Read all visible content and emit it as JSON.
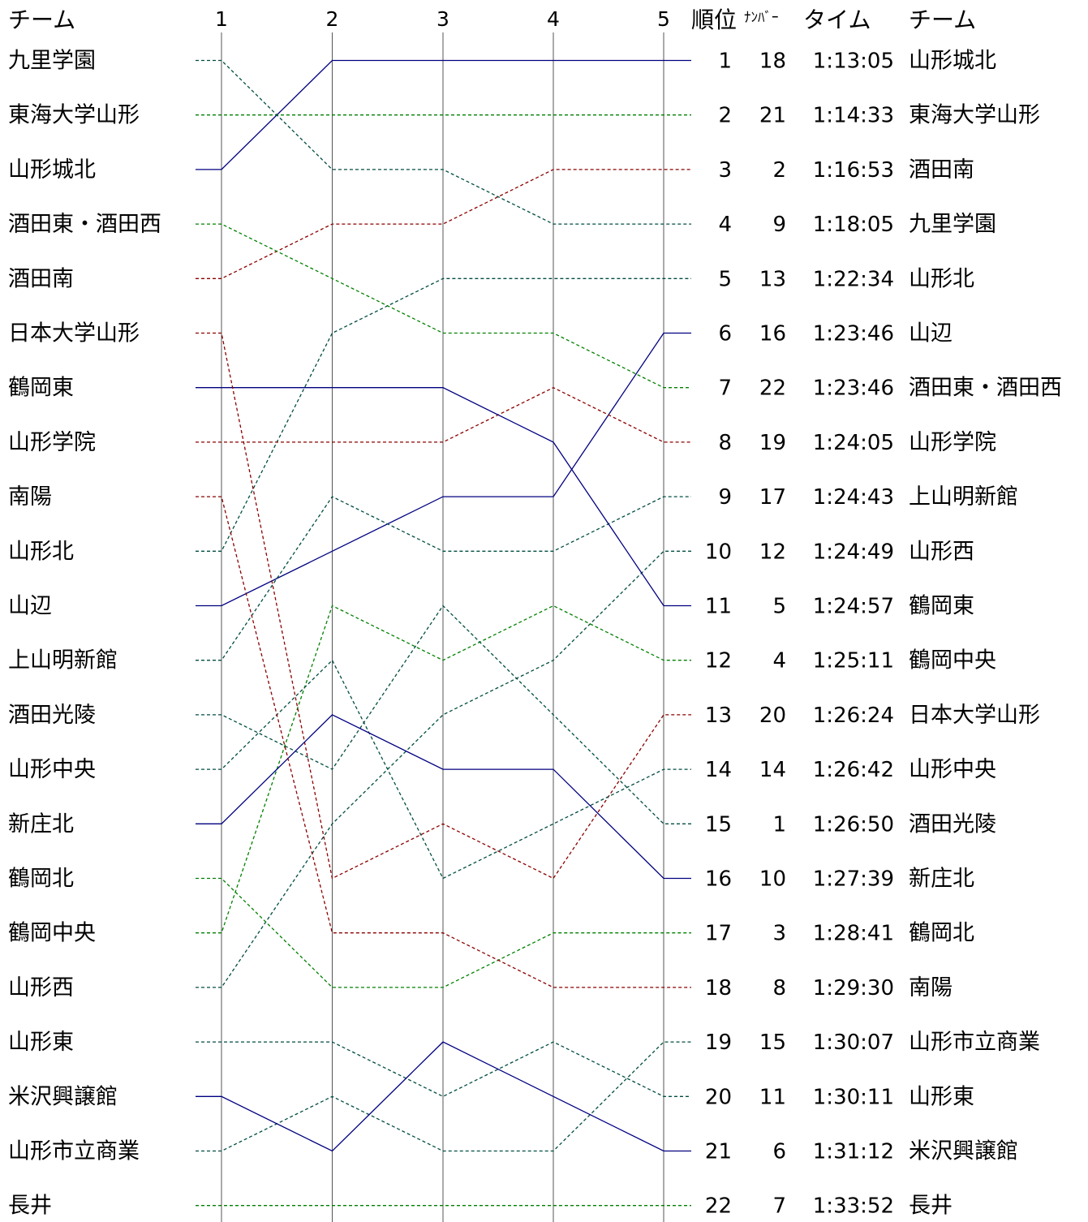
{
  "chart_data": {
    "type": "line",
    "title": "",
    "headers": {
      "left_team": "チーム",
      "rank": "順位",
      "number": "ﾅﾝﾊﾞｰ",
      "time": "タイム",
      "right_team": "チーム"
    },
    "x": [
      "1",
      "2",
      "3",
      "4",
      "5"
    ],
    "ylim": [
      1,
      22
    ],
    "y_inverted": true,
    "start_order": [
      "九里学園",
      "東海大学山形",
      "山形城北",
      "酒田東・酒田西",
      "酒田南",
      "日本大学山形",
      "鶴岡東",
      "山形学院",
      "南陽",
      "山形北",
      "山辺",
      "上山明新館",
      "酒田光陵",
      "山形中央",
      "新庄北",
      "鶴岡北",
      "鶴岡中央",
      "山形西",
      "山形東",
      "米沢興譲館",
      "山形市立商業",
      "長井"
    ],
    "series": [
      {
        "name": "山形城北",
        "values": [
          3,
          1,
          1,
          1,
          1
        ],
        "color": "#000080",
        "dash": false
      },
      {
        "name": "東海大学山形",
        "values": [
          2,
          2,
          2,
          2,
          2
        ],
        "color": "#008000",
        "dash": true
      },
      {
        "name": "酒田南",
        "values": [
          5,
          4,
          4,
          3,
          3
        ],
        "color": "#8B0000",
        "dash": true
      },
      {
        "name": "九里学園",
        "values": [
          1,
          3,
          3,
          4,
          4
        ],
        "color": "#004d40",
        "dash": true
      },
      {
        "name": "山形北",
        "values": [
          10,
          6,
          5,
          5,
          5
        ],
        "color": "#004d40",
        "dash": true
      },
      {
        "name": "山辺",
        "values": [
          11,
          10,
          9,
          9,
          6
        ],
        "color": "#000080",
        "dash": false
      },
      {
        "name": "酒田東・酒田西",
        "values": [
          4,
          5,
          6,
          6,
          7
        ],
        "color": "#008000",
        "dash": true
      },
      {
        "name": "山形学院",
        "values": [
          8,
          8,
          8,
          7,
          8
        ],
        "color": "#8B0000",
        "dash": true
      },
      {
        "name": "上山明新館",
        "values": [
          12,
          9,
          10,
          10,
          9
        ],
        "color": "#004d40",
        "dash": true
      },
      {
        "name": "山形西",
        "values": [
          18,
          15,
          13,
          12,
          10
        ],
        "color": "#004d40",
        "dash": true
      },
      {
        "name": "鶴岡東",
        "values": [
          7,
          7,
          7,
          8,
          11
        ],
        "color": "#000080",
        "dash": false
      },
      {
        "name": "鶴岡中央",
        "values": [
          17,
          11,
          12,
          11,
          12
        ],
        "color": "#008000",
        "dash": true
      },
      {
        "name": "日本大学山形",
        "values": [
          6,
          16,
          15,
          16,
          13
        ],
        "color": "#8B0000",
        "dash": true
      },
      {
        "name": "山形中央",
        "values": [
          14,
          12,
          16,
          15,
          14
        ],
        "color": "#004d40",
        "dash": true
      },
      {
        "name": "酒田光陵",
        "values": [
          13,
          14,
          11,
          13,
          15
        ],
        "color": "#004d40",
        "dash": true
      },
      {
        "name": "新庄北",
        "values": [
          15,
          13,
          14,
          14,
          16
        ],
        "color": "#000080",
        "dash": false
      },
      {
        "name": "鶴岡北",
        "values": [
          16,
          18,
          18,
          17,
          17
        ],
        "color": "#008000",
        "dash": true
      },
      {
        "name": "南陽",
        "values": [
          9,
          17,
          17,
          18,
          18
        ],
        "color": "#8B0000",
        "dash": true
      },
      {
        "name": "山形市立商業",
        "values": [
          21,
          20,
          21,
          21,
          19
        ],
        "color": "#004d40",
        "dash": true
      },
      {
        "name": "山形東",
        "values": [
          19,
          19,
          20,
          19,
          20
        ],
        "color": "#004d40",
        "dash": true
      },
      {
        "name": "米沢興譲館",
        "values": [
          20,
          21,
          19,
          20,
          21
        ],
        "color": "#000080",
        "dash": false
      },
      {
        "name": "長井",
        "values": [
          22,
          22,
          22,
          22,
          22
        ],
        "color": "#008000",
        "dash": true
      }
    ],
    "results": [
      {
        "rank": "1",
        "number": "18",
        "time": "1:13:05",
        "team": "山形城北"
      },
      {
        "rank": "2",
        "number": "21",
        "time": "1:14:33",
        "team": "東海大学山形"
      },
      {
        "rank": "3",
        "number": "2",
        "time": "1:16:53",
        "team": "酒田南"
      },
      {
        "rank": "4",
        "number": "9",
        "time": "1:18:05",
        "team": "九里学園"
      },
      {
        "rank": "5",
        "number": "13",
        "time": "1:22:34",
        "team": "山形北"
      },
      {
        "rank": "6",
        "number": "16",
        "time": "1:23:46",
        "team": "山辺"
      },
      {
        "rank": "7",
        "number": "22",
        "time": "1:23:46",
        "team": "酒田東・酒田西"
      },
      {
        "rank": "8",
        "number": "19",
        "time": "1:24:05",
        "team": "山形学院"
      },
      {
        "rank": "9",
        "number": "17",
        "time": "1:24:43",
        "team": "上山明新館"
      },
      {
        "rank": "10",
        "number": "12",
        "time": "1:24:49",
        "team": "山形西"
      },
      {
        "rank": "11",
        "number": "5",
        "time": "1:24:57",
        "team": "鶴岡東"
      },
      {
        "rank": "12",
        "number": "4",
        "time": "1:25:11",
        "team": "鶴岡中央"
      },
      {
        "rank": "13",
        "number": "20",
        "time": "1:26:24",
        "team": "日本大学山形"
      },
      {
        "rank": "14",
        "number": "14",
        "time": "1:26:42",
        "team": "山形中央"
      },
      {
        "rank": "15",
        "number": "1",
        "time": "1:26:50",
        "team": "酒田光陵"
      },
      {
        "rank": "16",
        "number": "10",
        "time": "1:27:39",
        "team": "新庄北"
      },
      {
        "rank": "17",
        "number": "3",
        "time": "1:28:41",
        "team": "鶴岡北"
      },
      {
        "rank": "18",
        "number": "8",
        "time": "1:29:30",
        "team": "南陽"
      },
      {
        "rank": "19",
        "number": "15",
        "time": "1:30:07",
        "team": "山形市立商業"
      },
      {
        "rank": "20",
        "number": "11",
        "time": "1:30:11",
        "team": "山形東"
      },
      {
        "rank": "21",
        "number": "6",
        "time": "1:31:12",
        "team": "米沢興譲館"
      },
      {
        "rank": "22",
        "number": "7",
        "time": "1:33:52",
        "team": "長井"
      }
    ],
    "grid": true,
    "legend": "none"
  }
}
